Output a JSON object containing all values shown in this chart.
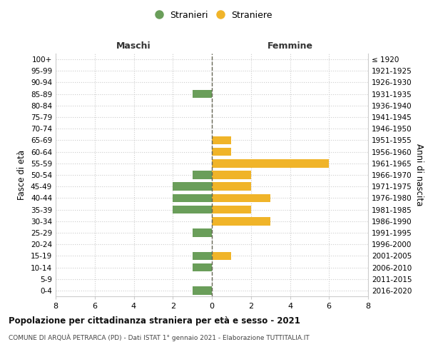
{
  "age_groups": [
    "100+",
    "95-99",
    "90-94",
    "85-89",
    "80-84",
    "75-79",
    "70-74",
    "65-69",
    "60-64",
    "55-59",
    "50-54",
    "45-49",
    "40-44",
    "35-39",
    "30-34",
    "25-29",
    "20-24",
    "15-19",
    "10-14",
    "5-9",
    "0-4"
  ],
  "birth_years": [
    "≤ 1920",
    "1921-1925",
    "1926-1930",
    "1931-1935",
    "1936-1940",
    "1941-1945",
    "1946-1950",
    "1951-1955",
    "1956-1960",
    "1961-1965",
    "1966-1970",
    "1971-1975",
    "1976-1980",
    "1981-1985",
    "1986-1990",
    "1991-1995",
    "1996-2000",
    "2001-2005",
    "2006-2010",
    "2011-2015",
    "2016-2020"
  ],
  "males": [
    0,
    0,
    0,
    1,
    0,
    0,
    0,
    0,
    0,
    0,
    1,
    2,
    2,
    2,
    0,
    1,
    0,
    1,
    1,
    0,
    1
  ],
  "females": [
    0,
    0,
    0,
    0,
    0,
    0,
    0,
    1,
    1,
    6,
    2,
    2,
    3,
    2,
    3,
    0,
    0,
    1,
    0,
    0,
    0
  ],
  "male_color": "#6a9e5a",
  "female_color": "#f0b429",
  "title": "Popolazione per cittadinanza straniera per età e sesso - 2021",
  "subtitle": "COMUNE DI ARQUÀ PETRARCA (PD) - Dati ISTAT 1° gennaio 2021 - Elaborazione TUTTITALIA.IT",
  "xlabel_left": "Maschi",
  "xlabel_right": "Femmine",
  "ylabel_left": "Fasce di età",
  "ylabel_right": "Anni di nascita",
  "legend_male": "Stranieri",
  "legend_female": "Straniere",
  "xlim": 8,
  "background_color": "#ffffff",
  "grid_color": "#cccccc"
}
